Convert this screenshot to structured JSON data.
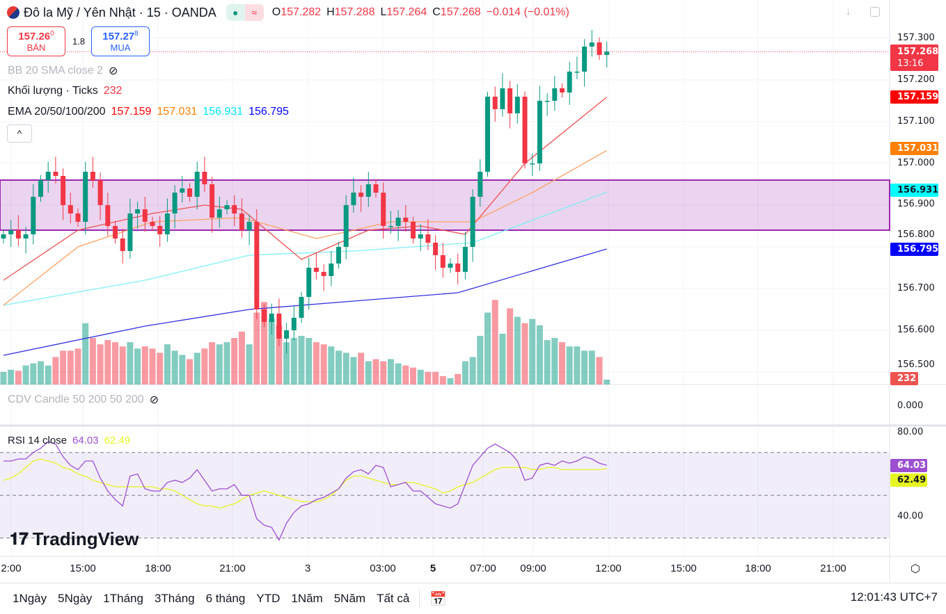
{
  "header": {
    "symbol": "Đô la Mỹ / Yên Nhật · 15 · OANDA",
    "o_label": "O",
    "o": "157.282",
    "h_label": "H",
    "h": "157.288",
    "l_label": "L",
    "l": "157.264",
    "c_label": "C",
    "c": "157.268",
    "change": "−0.014 (−0.01%)"
  },
  "trade": {
    "sell_price": "157.26",
    "sell_sup": "0",
    "sell_label": "BÁN",
    "spread": "1.8",
    "buy_price": "157.27",
    "buy_sup": "8",
    "buy_label": "MUA"
  },
  "legends": {
    "bb": "BB 20 SMA close 2",
    "volume": "Khối lượng · Ticks",
    "volume_value": "232",
    "ema": "EMA 20/50/100/200",
    "ema20": "157.159",
    "ema50": "157.031",
    "ema100": "156.931",
    "ema200": "156.795",
    "cdv": "CDV Candle 50 200 50 200",
    "rsi": "RSI 14 close",
    "rsi_value": "64.03",
    "rsi_ma": "62.49"
  },
  "colors": {
    "up": "#089981",
    "down": "#f23645",
    "ema20": "#ff0000",
    "ema50": "#ff7f00",
    "ema100": "#00ffff",
    "ema200": "#0000ff",
    "rsi": "#9c4fd0",
    "rsi_ma": "#e6f520",
    "zone": "#9c27b0"
  },
  "price_axis": [
    "157.300",
    "157.200",
    "157.100",
    "157.000",
    "156.900",
    "156.800",
    "156.700",
    "156.600",
    "156.500"
  ],
  "cdv_axis": "0.000",
  "rsi_axis": [
    "80.00",
    "40.00"
  ],
  "tags": {
    "last": "157.268",
    "countdown": "13:16",
    "ema20": "157.159",
    "ema50": "157.031",
    "ema100": "156.931",
    "ema200": "156.795",
    "volume": "232",
    "rsi": "64.03",
    "rsi_ma": "62.49"
  },
  "time_axis": [
    "2:00",
    "15:00",
    "18:00",
    "21:00",
    "3",
    "03:00",
    "5",
    "07:00",
    "09:00",
    "12:00",
    "15:00",
    "18:00",
    "21:00"
  ],
  "ranges": [
    "1Ngày",
    "5Ngày",
    "1Tháng",
    "3Tháng",
    "6 tháng",
    "YTD",
    "1Năm",
    "5Năm",
    "Tất cả"
  ],
  "clock": "12:01:43 UTC+7",
  "logo": "TradingView",
  "chart_data": {
    "type": "candlestick",
    "zone": [
      156.84,
      156.96
    ],
    "closes": [
      156.83,
      156.84,
      156.82,
      156.83,
      156.92,
      156.96,
      156.98,
      156.97,
      156.9,
      156.88,
      156.86,
      156.98,
      156.96,
      156.9,
      156.85,
      156.82,
      156.79,
      156.88,
      156.89,
      156.86,
      156.85,
      156.83,
      156.88,
      156.93,
      156.94,
      156.92,
      156.98,
      156.95,
      156.87,
      156.89,
      156.9,
      156.88,
      156.84,
      156.86,
      156.65,
      156.62,
      156.64,
      156.58,
      156.6,
      156.63,
      156.68,
      156.75,
      156.74,
      156.73,
      156.76,
      156.8,
      156.9,
      156.93,
      156.92,
      156.95,
      156.93,
      156.85,
      156.85,
      156.87,
      156.86,
      156.82,
      156.83,
      156.81,
      156.78,
      156.75,
      156.76,
      156.74,
      156.8,
      156.92,
      156.98,
      157.16,
      157.13,
      157.18,
      157.12,
      157.16,
      157.0,
      157.0,
      157.15,
      157.15,
      157.18,
      157.17,
      157.22,
      157.22,
      157.28,
      157.29,
      157.26,
      157.268
    ],
    "volumes": [
      600,
      700,
      650,
      900,
      1000,
      1100,
      900,
      1300,
      1600,
      1600,
      1700,
      2900,
      2200,
      1900,
      2100,
      2000,
      1800,
      2000,
      1700,
      1800,
      1700,
      1500,
      1900,
      1600,
      1400,
      1200,
      1500,
      1700,
      2000,
      1900,
      2000,
      2200,
      2500,
      1900,
      3400,
      3900,
      3100,
      2800,
      2000,
      2200,
      2300,
      2200,
      2000,
      1900,
      1800,
      1600,
      1500,
      1300,
      1500,
      1100,
      1200,
      1100,
      1200,
      1000,
      900,
      800,
      700,
      600,
      600,
      400,
      300,
      500,
      1100,
      1300,
      2300,
      3400,
      4000,
      2400,
      3600,
      3200,
      2900,
      3100,
      2800,
      2100,
      2200,
      2000,
      1800,
      1800,
      1600,
      1600,
      1300,
      232
    ],
    "rsi": [
      66,
      66,
      67,
      67,
      70,
      72,
      75,
      74,
      68,
      64,
      62,
      66,
      66,
      58,
      52,
      48,
      45,
      59,
      60,
      53,
      52,
      52,
      56,
      57,
      56,
      58,
      62,
      57,
      52,
      53,
      53,
      55,
      50,
      50,
      39,
      36,
      35,
      29,
      37,
      42,
      45,
      46,
      48,
      49,
      51,
      53,
      58,
      61,
      62,
      60,
      64,
      63,
      54,
      55,
      56,
      52,
      52,
      49,
      46,
      45,
      44,
      46,
      55,
      64,
      68,
      72,
      74,
      72,
      70,
      66,
      57,
      58,
      64,
      65,
      64,
      66,
      65,
      66,
      68,
      67,
      65,
      64.03
    ],
    "rsi_ma": [
      57,
      58,
      60,
      63,
      66,
      67,
      66,
      65,
      63,
      62,
      60,
      59,
      57,
      56,
      55,
      54,
      54,
      54,
      54,
      54,
      54,
      53,
      53,
      52,
      50,
      48,
      46,
      45,
      45,
      44,
      45,
      46,
      48,
      50,
      51,
      52,
      51,
      50,
      49,
      48,
      47,
      47,
      47,
      48,
      50,
      53,
      57,
      59,
      59,
      58,
      57,
      56,
      55,
      55,
      56,
      56,
      55,
      54,
      53,
      51,
      52,
      54,
      55,
      56,
      58,
      60,
      62,
      63,
      63,
      63,
      63,
      62,
      62,
      63,
      63,
      62,
      62,
      62,
      62,
      62,
      62,
      62.49
    ],
    "ema20": [
      [
        0,
        156.72
      ],
      [
        10,
        156.84
      ],
      [
        20,
        156.88
      ],
      [
        27,
        156.9
      ],
      [
        32,
        156.89
      ],
      [
        40,
        156.77
      ],
      [
        49,
        156.84
      ],
      [
        56,
        156.85
      ],
      [
        62,
        156.83
      ],
      [
        70,
        157.0
      ],
      [
        81,
        157.159
      ]
    ],
    "ema50": [
      [
        0,
        156.66
      ],
      [
        10,
        156.8
      ],
      [
        20,
        156.86
      ],
      [
        32,
        156.87
      ],
      [
        42,
        156.82
      ],
      [
        52,
        156.86
      ],
      [
        63,
        156.86
      ],
      [
        71,
        156.93
      ],
      [
        81,
        157.031
      ]
    ],
    "ema100": [
      [
        0,
        156.66
      ],
      [
        19,
        156.72
      ],
      [
        33,
        156.78
      ],
      [
        47,
        156.79
      ],
      [
        63,
        156.81
      ],
      [
        81,
        156.931
      ]
    ],
    "ema200": [
      [
        0,
        156.54
      ],
      [
        19,
        156.61
      ],
      [
        33,
        156.65
      ],
      [
        47,
        156.67
      ],
      [
        61,
        156.69
      ],
      [
        81,
        156.795
      ]
    ]
  }
}
